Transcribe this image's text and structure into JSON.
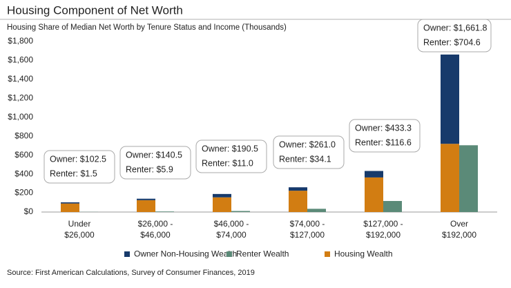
{
  "chart_data": {
    "type": "bar",
    "title": "Housing Component of Net Worth",
    "subtitle": "Housing Share of Median Net Worth by Tenure Status and Income (Thousands)",
    "source": "Source: First American Calculations, Survey of Consumer Finances, 2019",
    "categories": [
      [
        "Under",
        "$26,000"
      ],
      [
        "$26,000 -",
        "$46,000"
      ],
      [
        "$46,000 -",
        "$74,000"
      ],
      [
        "$74,000 -",
        "$127,000"
      ],
      [
        "$127,000 -",
        "$192,000"
      ],
      [
        "Over",
        "$192,000"
      ]
    ],
    "series": [
      {
        "name": "Housing Wealth",
        "color": "#d27d12",
        "stack": "owner",
        "values": [
          90,
          125,
          155,
          225,
          365,
          720
        ]
      },
      {
        "name": "Owner Non-Housing Wealth",
        "color": "#173a6b",
        "stack": "owner",
        "values": [
          12.5,
          15.5,
          35.5,
          36,
          68.3,
          941.8
        ]
      },
      {
        "name": "Renter Wealth",
        "color": "#5b8a78",
        "stack": "renter",
        "values": [
          1.5,
          5.9,
          11.0,
          34.1,
          116.6,
          704.6
        ]
      }
    ],
    "legend_order": [
      1,
      2,
      0
    ],
    "annotations": [
      [
        "Owner: $102.5",
        "Renter: $1.5"
      ],
      [
        "Owner: $140.5",
        "Renter: $5.9"
      ],
      [
        "Owner: $190.5",
        "Renter: $11.0"
      ],
      [
        "Owner: $261.0",
        "Renter: $34.1"
      ],
      [
        "Owner: $433.3",
        "Renter: $116.6"
      ],
      [
        "Owner: $1,661.8",
        "Renter: $704.6"
      ]
    ],
    "ylim": [
      0,
      1800
    ],
    "yticks": [
      {
        "value": 0,
        "label": "$0"
      },
      {
        "value": 200,
        "label": "$200"
      },
      {
        "value": 400,
        "label": "$400"
      },
      {
        "value": 600,
        "label": "$600"
      },
      {
        "value": 800,
        "label": "$800"
      },
      {
        "value": 1000,
        "label": "$1,000"
      },
      {
        "value": 1200,
        "label": "$1,200"
      },
      {
        "value": 1400,
        "label": "$1,400"
      },
      {
        "value": 1600,
        "label": "$1,600"
      },
      {
        "value": 1800,
        "label": "$1,800"
      }
    ],
    "grid": false
  }
}
